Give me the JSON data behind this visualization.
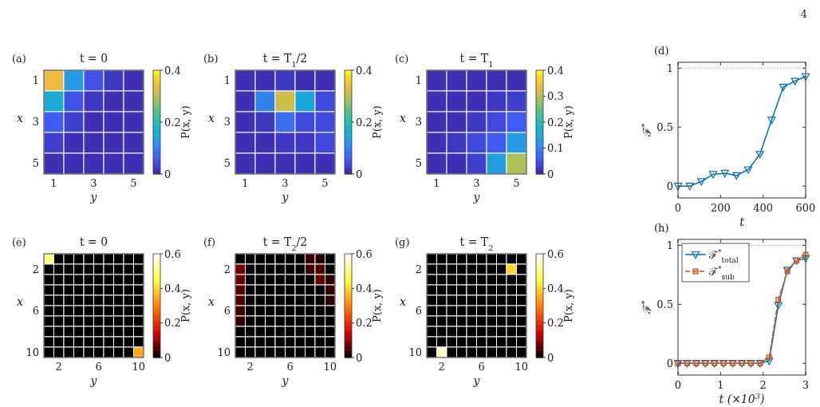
{
  "chart_data": [
    {
      "type": "heatmap",
      "title": "t = 0",
      "xlabel": "y",
      "ylabel": "x",
      "annotations": [
        "(a)"
      ],
      "categories": [
        "1",
        null,
        "3",
        null,
        "5"
      ],
      "y_categories": [
        "1",
        null,
        "3",
        null,
        "5"
      ],
      "cells": [
        [
          0.34,
          0.13,
          0.05,
          0.02,
          0.01
        ],
        [
          0.16,
          0.05,
          0.02,
          0.01,
          0.01
        ],
        [
          0.06,
          0.03,
          0.01,
          0.01,
          0.01
        ],
        [
          0.03,
          0.01,
          0.01,
          0.01,
          0.01
        ],
        [
          0.01,
          0.01,
          0.01,
          0.01,
          0.01
        ]
      ],
      "clim": [
        0,
        0.4
      ],
      "cticks": [
        0,
        0.2,
        0.4
      ],
      "clabel": "P(x, y)"
    },
    {
      "type": "heatmap",
      "title": "t = T$_{1}$/2",
      "xlabel": "y",
      "ylabel": "x",
      "annotations": [
        "(b)"
      ],
      "categories": [
        "1",
        null,
        "3",
        null,
        "5"
      ],
      "y_categories": [
        "1",
        null,
        "3",
        null,
        "5"
      ],
      "cells": [
        [
          0.01,
          0.01,
          0.02,
          0.01,
          0.01
        ],
        [
          0.01,
          0.1,
          0.32,
          0.15,
          0.04
        ],
        [
          0.01,
          0.02,
          0.08,
          0.04,
          0.04
        ],
        [
          0.01,
          0.01,
          0.02,
          0.02,
          0.04
        ],
        [
          0.01,
          0.01,
          0.01,
          0.01,
          0.01
        ]
      ],
      "clim": [
        0,
        0.4
      ],
      "cticks": [
        0,
        0.2,
        0.4
      ],
      "clabel": "P(x, y)"
    },
    {
      "type": "heatmap",
      "title": "t = T$_{1}$",
      "xlabel": "y",
      "ylabel": "x",
      "annotations": [
        "(c)"
      ],
      "categories": [
        "1",
        null,
        "3",
        null,
        "5"
      ],
      "y_categories": [
        "1",
        null,
        "3",
        null,
        "5"
      ],
      "cells": [
        [
          0.01,
          0.01,
          0.01,
          0.01,
          0.01
        ],
        [
          0.01,
          0.01,
          0.01,
          0.02,
          0.03
        ],
        [
          0.01,
          0.01,
          0.02,
          0.04,
          0.06
        ],
        [
          0.01,
          0.02,
          0.04,
          0.06,
          0.13
        ],
        [
          0.01,
          0.01,
          0.03,
          0.14,
          0.3
        ]
      ],
      "clim": [
        0,
        0.4
      ],
      "cticks": [
        0,
        0.1,
        0.2,
        0.3,
        0.4
      ],
      "clabel": "P(x, y)"
    },
    {
      "type": "line",
      "xlabel": "t",
      "ylabel": "ℱ$^{*}$",
      "annotations": [
        "(d)",
        "4"
      ],
      "x": [
        0,
        55,
        110,
        165,
        220,
        275,
        330,
        385,
        440,
        495,
        550,
        600
      ],
      "series": [
        {
          "color": "#0072bd",
          "marker": "triangle",
          "line_style": "solid",
          "values": [
            0,
            0,
            0.04,
            0.1,
            0.11,
            0.09,
            0.14,
            0.27,
            0.56,
            0.84,
            0.89,
            0.93
          ]
        }
      ],
      "xlim": [
        0,
        600
      ],
      "xticks": [
        0,
        200,
        400,
        600
      ],
      "ylim": [
        -0.1,
        1.05
      ],
      "yticks": [
        0,
        0.5,
        1
      ],
      "ref_lines": [
        {
          "axis": "y",
          "value": 1,
          "color": "#a0a0a0",
          "line_style": "dotted"
        }
      ]
    },
    {
      "type": "heatmap",
      "title": "t = 0",
      "xlabel": "y",
      "ylabel": "x",
      "annotations": [
        "(e)"
      ],
      "categories": [
        null,
        "2",
        null,
        null,
        null,
        "6",
        null,
        null,
        null,
        "10"
      ],
      "y_categories": [
        null,
        "2",
        null,
        null,
        null,
        "6",
        null,
        null,
        null,
        "10"
      ],
      "cells": [
        [
          0.5,
          0,
          0,
          0,
          0,
          0,
          0,
          0,
          0,
          0
        ],
        [
          0,
          0,
          0,
          0,
          0,
          0,
          0,
          0,
          0,
          0
        ],
        [
          0,
          0,
          0,
          0,
          0,
          0,
          0,
          0,
          0,
          0
        ],
        [
          0,
          0,
          0,
          0,
          0,
          0,
          0,
          0,
          0,
          0
        ],
        [
          0,
          0,
          0,
          0,
          0,
          0,
          0,
          0,
          0,
          0
        ],
        [
          0,
          0,
          0,
          0,
          0,
          0,
          0,
          0,
          0,
          0
        ],
        [
          0,
          0,
          0,
          0,
          0,
          0,
          0,
          0,
          0,
          0
        ],
        [
          0,
          0,
          0,
          0,
          0,
          0,
          0,
          0,
          0,
          0
        ],
        [
          0,
          0,
          0,
          0,
          0,
          0,
          0,
          0,
          0,
          0
        ],
        [
          0,
          0,
          0,
          0,
          0,
          0,
          0,
          0,
          0,
          0.35
        ]
      ],
      "clim": [
        0,
        0.6
      ],
      "cticks": [
        0,
        0.2,
        0.4,
        0.6
      ],
      "clabel": "P(x, y)"
    },
    {
      "type": "heatmap",
      "title": "t = T$_{2}$/2",
      "xlabel": "y",
      "ylabel": "x",
      "annotations": [
        "(f)"
      ],
      "categories": [
        null,
        "2",
        null,
        null,
        null,
        "6",
        null,
        null,
        null,
        "10"
      ],
      "y_categories": [
        null,
        "2",
        null,
        null,
        null,
        "6",
        null,
        null,
        null,
        "10"
      ],
      "cells": [
        [
          0,
          0,
          0,
          0,
          0,
          0,
          0,
          0.04,
          0.03,
          0
        ],
        [
          0.08,
          0,
          0,
          0,
          0,
          0,
          0,
          0.04,
          0.05,
          0
        ],
        [
          0.07,
          0,
          0,
          0,
          0,
          0,
          0,
          0,
          0.07,
          0.03
        ],
        [
          0.06,
          0,
          0,
          0,
          0,
          0,
          0,
          0,
          0,
          0.04
        ],
        [
          0.05,
          0,
          0,
          0,
          0,
          0,
          0,
          0,
          0,
          0.03
        ],
        [
          0.04,
          0,
          0,
          0,
          0,
          0,
          0,
          0,
          0,
          0
        ],
        [
          0.03,
          0,
          0,
          0,
          0,
          0,
          0,
          0,
          0,
          0
        ],
        [
          0,
          0,
          0,
          0,
          0,
          0,
          0,
          0,
          0,
          0
        ],
        [
          0,
          0,
          0,
          0,
          0,
          0,
          0,
          0,
          0,
          0
        ],
        [
          0,
          0,
          0,
          0,
          0,
          0,
          0,
          0,
          0,
          0
        ]
      ],
      "clim": [
        0,
        0.6
      ],
      "cticks": [
        0,
        0.2,
        0.4,
        0.6
      ],
      "clabel": "P(x, y)"
    },
    {
      "type": "heatmap",
      "title": "t = T$_{2}$",
      "xlabel": "y",
      "ylabel": "x",
      "annotations": [
        "(g)"
      ],
      "categories": [
        null,
        "2",
        null,
        null,
        null,
        "6",
        null,
        null,
        null,
        "10"
      ],
      "y_categories": [
        null,
        "2",
        null,
        null,
        null,
        "6",
        null,
        null,
        null,
        "10"
      ],
      "cells": [
        [
          0,
          0,
          0,
          0,
          0,
          0,
          0,
          0,
          0,
          0
        ],
        [
          0,
          0,
          0,
          0,
          0,
          0,
          0,
          0,
          0.4,
          0
        ],
        [
          0,
          0,
          0,
          0,
          0,
          0,
          0,
          0,
          0,
          0
        ],
        [
          0,
          0,
          0,
          0,
          0,
          0,
          0,
          0,
          0,
          0
        ],
        [
          0,
          0,
          0,
          0,
          0,
          0,
          0,
          0,
          0,
          0
        ],
        [
          0,
          0,
          0,
          0,
          0,
          0,
          0,
          0,
          0,
          0
        ],
        [
          0,
          0,
          0,
          0,
          0,
          0,
          0,
          0,
          0,
          0
        ],
        [
          0,
          0,
          0,
          0,
          0,
          0,
          0,
          0,
          0,
          0
        ],
        [
          0,
          0,
          0,
          0,
          0,
          0,
          0,
          0,
          0,
          0
        ],
        [
          0,
          0.55,
          0,
          0,
          0,
          0,
          0,
          0,
          0,
          0
        ]
      ],
      "clim": [
        0,
        0.6
      ],
      "cticks": [
        0,
        0.2,
        0.4,
        0.6
      ],
      "clabel": "P(x, y)"
    },
    {
      "type": "line",
      "xlabel": "t (×10$^{3}$)",
      "ylabel": "ℱ$^{*}$",
      "annotations": [
        "(h)"
      ],
      "legend": "top left",
      "x": [
        0,
        0.214,
        0.429,
        0.643,
        0.857,
        1.071,
        1.286,
        1.5,
        1.714,
        1.929,
        2.143,
        2.357,
        2.571,
        2.786,
        3.0
      ],
      "series": [
        {
          "name": "ℱ$^{*}$$_{total}$",
          "color": "#0072bd",
          "marker": "triangle",
          "line_style": "solid",
          "values": [
            0,
            0,
            0,
            0,
            0,
            0,
            0,
            0,
            0,
            0,
            0.02,
            0.49,
            0.79,
            0.87,
            0.89
          ]
        },
        {
          "name": "ℱ$^{*}$$_{sub}$",
          "color": "#d95319",
          "marker": "square",
          "line_style": "dashed",
          "values": [
            0,
            0,
            0,
            0,
            0,
            0,
            0,
            0,
            0,
            0,
            0.05,
            0.54,
            0.78,
            0.87,
            0.92
          ]
        }
      ],
      "xlim": [
        0,
        3
      ],
      "xticks": [
        0,
        1,
        2,
        3
      ],
      "ylim": [
        -0.1,
        1.05
      ],
      "yticks": [
        0,
        0.5,
        1
      ],
      "ref_lines": [
        {
          "axis": "y",
          "value": 1,
          "color": "#a0a0a0",
          "line_style": "dotted"
        }
      ]
    }
  ]
}
